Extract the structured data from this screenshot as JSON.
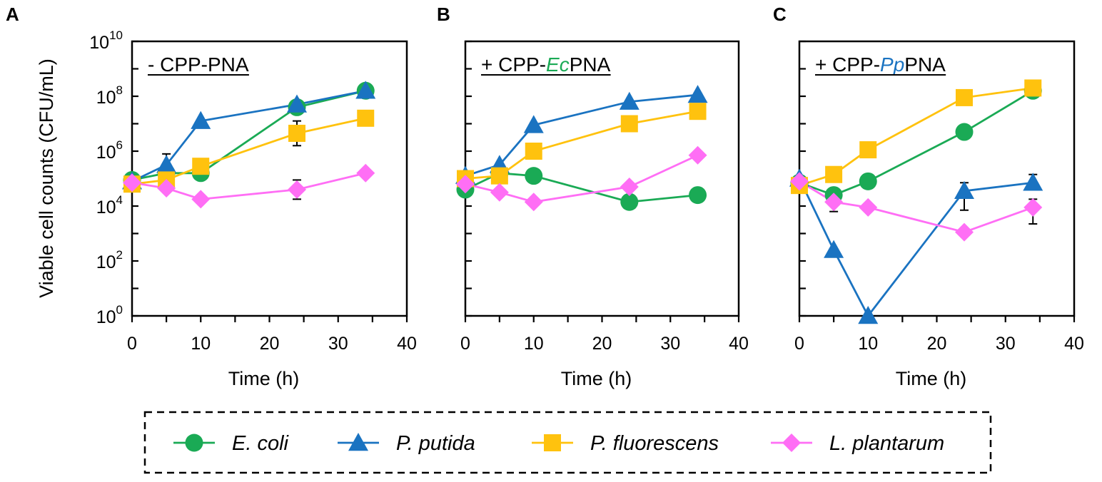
{
  "chart_data": {
    "type": "line",
    "ylabel": "Viable cell counts (CFU/mL)",
    "xlabel": "Time (h)",
    "xlim": [
      0,
      40
    ],
    "xticks": [
      "0",
      "10",
      "20",
      "30",
      "40"
    ],
    "ylim_log10": [
      0,
      10
    ],
    "yticks": [
      {
        "base": "10",
        "exp": "0"
      },
      {
        "base": "10",
        "exp": "2"
      },
      {
        "base": "10",
        "exp": "4"
      },
      {
        "base": "10",
        "exp": "6"
      },
      {
        "base": "10",
        "exp": "8"
      },
      {
        "base": "10",
        "exp": "10"
      }
    ],
    "legend": {
      "placement": "bottom",
      "entries": [
        "E. coli",
        "P. putida",
        "P. fluorescens",
        "L. plantarum"
      ]
    },
    "series_styles": [
      {
        "name": "E. coli",
        "color": "#1aaa55",
        "marker": "circle"
      },
      {
        "name": "P. putida",
        "color": "#1a73c1",
        "marker": "triangle"
      },
      {
        "name": "P. fluorescens",
        "color": "#ffc20e",
        "marker": "square"
      },
      {
        "name": "L. plantarum",
        "color": "#ff6ef5",
        "marker": "diamond"
      }
    ],
    "panels": [
      {
        "letter": "A",
        "label_parts": [
          {
            "text": "- CPP-PNA",
            "color": "#000000",
            "italic": false
          }
        ],
        "x": [
          0,
          5,
          10,
          24,
          34
        ],
        "series": [
          {
            "name": "E. coli",
            "log10_values": [
              4.95,
              5.2,
              5.2,
              7.6,
              8.2
            ],
            "err_up": [
              0,
              0,
              0,
              0.2,
              0
            ],
            "err_down": [
              0,
              0,
              0,
              0.2,
              0
            ]
          },
          {
            "name": "P. putida",
            "log10_values": [
              4.9,
              5.5,
              7.1,
              7.7,
              8.2
            ],
            "err_up": [
              0,
              0.4,
              0,
              0,
              0
            ],
            "err_down": [
              0,
              0,
              0,
              0,
              0
            ]
          },
          {
            "name": "P. fluorescens",
            "log10_values": [
              4.8,
              4.95,
              5.45,
              6.65,
              7.2
            ],
            "err_up": [
              0,
              0,
              0,
              0.45,
              0
            ],
            "err_down": [
              0,
              0,
              0,
              0.45,
              0
            ]
          },
          {
            "name": "L. plantarum",
            "log10_values": [
              4.85,
              4.65,
              4.25,
              4.6,
              5.2
            ],
            "err_up": [
              0,
              0,
              0,
              0.35,
              0
            ],
            "err_down": [
              0,
              0,
              0,
              0.35,
              0
            ]
          }
        ]
      },
      {
        "letter": "B",
        "label_parts": [
          {
            "text": "+ CPP-",
            "color": "#000000",
            "italic": false
          },
          {
            "text": "Ec",
            "color": "#1aaa55",
            "italic": true
          },
          {
            "text": "PNA",
            "color": "#000000",
            "italic": false
          }
        ],
        "x": [
          0,
          5,
          10,
          24,
          34
        ],
        "series": [
          {
            "name": "E. coli",
            "log10_values": [
              4.6,
              5.2,
              5.1,
              4.15,
              4.4
            ],
            "err_up": [
              0,
              0,
              0,
              0,
              0
            ],
            "err_down": [
              0,
              0,
              0,
              0,
              0
            ]
          },
          {
            "name": "P. putida",
            "log10_values": [
              5.1,
              5.5,
              6.95,
              7.8,
              8.05
            ],
            "err_up": [
              0,
              0,
              0,
              0,
              0
            ],
            "err_down": [
              0,
              0,
              0,
              0,
              0
            ]
          },
          {
            "name": "P. fluorescens",
            "log10_values": [
              5.0,
              5.1,
              6.0,
              7.0,
              7.45
            ],
            "err_up": [
              0,
              0,
              0,
              0,
              0
            ],
            "err_down": [
              0,
              0,
              0,
              0,
              0
            ]
          },
          {
            "name": "L. plantarum",
            "log10_values": [
              4.8,
              4.5,
              4.15,
              4.7,
              5.85
            ],
            "err_up": [
              0,
              0,
              0,
              0,
              0
            ],
            "err_down": [
              0,
              0,
              0,
              0,
              0
            ]
          }
        ]
      },
      {
        "letter": "C",
        "label_parts": [
          {
            "text": "+ CPP-",
            "color": "#000000",
            "italic": false
          },
          {
            "text": "Pp",
            "color": "#1a73c1",
            "italic": true
          },
          {
            "text": "PNA",
            "color": "#000000",
            "italic": false
          }
        ],
        "x": [
          0,
          5,
          10,
          24,
          34
        ],
        "series": [
          {
            "name": "E. coli",
            "log10_values": [
              4.85,
              4.4,
              4.9,
              6.7,
              8.2
            ],
            "err_up": [
              0,
              0,
              0,
              0,
              0
            ],
            "err_down": [
              0,
              0,
              0,
              0,
              0
            ]
          },
          {
            "name": "P. putida",
            "log10_values": [
              5.0,
              2.4,
              0.0,
              4.55,
              4.85
            ],
            "err_up": [
              0,
              0,
              0,
              0.3,
              0.3
            ],
            "err_down": [
              0,
              0,
              0,
              0.7,
              0
            ]
          },
          {
            "name": "P. fluorescens",
            "log10_values": [
              4.75,
              5.15,
              6.05,
              7.95,
              8.3
            ],
            "err_up": [
              0,
              0,
              0,
              0,
              0
            ],
            "err_down": [
              0,
              0,
              0,
              0,
              0
            ]
          },
          {
            "name": "L. plantarum",
            "log10_values": [
              4.9,
              4.15,
              3.95,
              3.05,
              3.95
            ],
            "err_up": [
              0,
              0,
              0,
              0,
              0.3
            ],
            "err_down": [
              0,
              0.35,
              0,
              0,
              0.6
            ]
          }
        ]
      }
    ]
  }
}
